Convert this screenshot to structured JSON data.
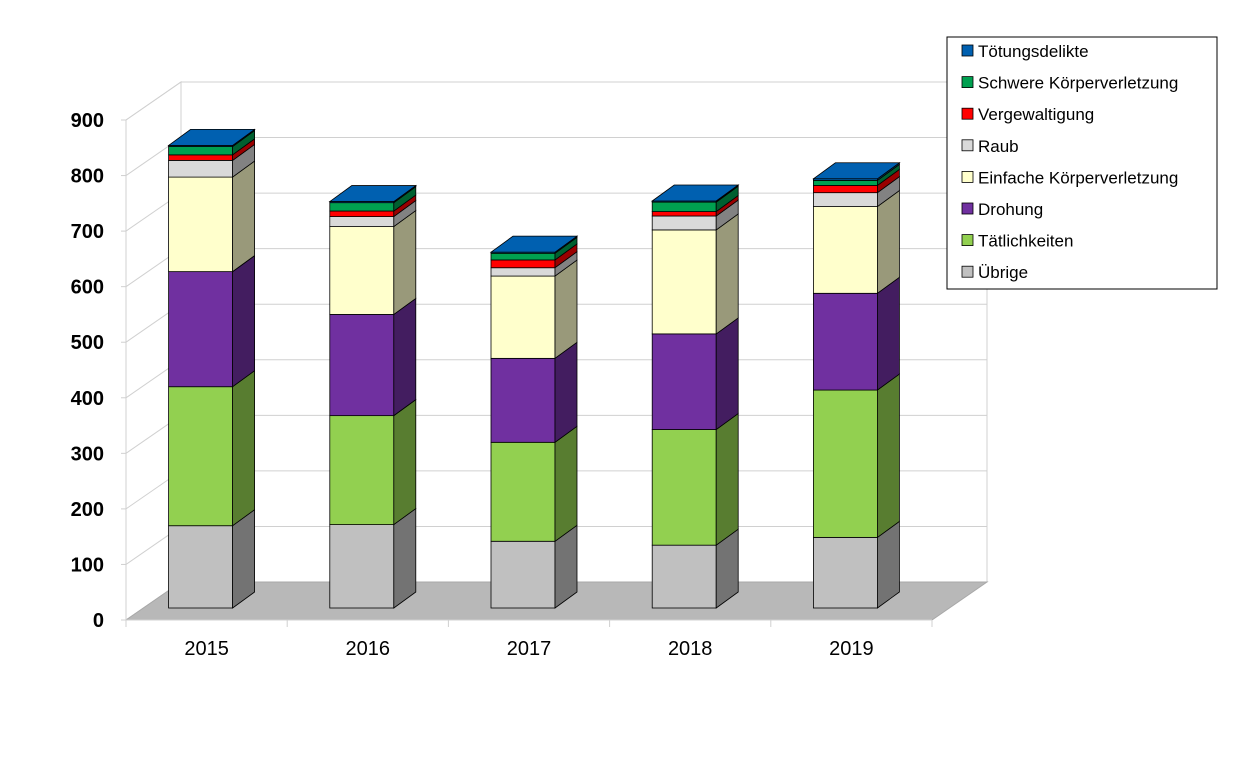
{
  "chart_data": {
    "type": "bar",
    "stacked": true,
    "three_d": true,
    "title": "",
    "xlabel": "",
    "ylabel": "",
    "ylim": [
      0,
      900
    ],
    "ytick_step": 100,
    "grid": true,
    "legend_position": "top-right",
    "categories": [
      "2015",
      "2016",
      "2017",
      "2018",
      "2019"
    ],
    "series": [
      {
        "name": "Übrige",
        "color": "#c0c0c0",
        "values": [
          148,
          150,
          120,
          113,
          127
        ]
      },
      {
        "name": "Tätlichkeiten",
        "color": "#92d050",
        "values": [
          250,
          196,
          178,
          208,
          265
        ]
      },
      {
        "name": "Drohung",
        "color": "#7030a0",
        "values": [
          207,
          182,
          151,
          172,
          174
        ]
      },
      {
        "name": "Einfache Körperverletzung",
        "color": "#ffffcc",
        "values": [
          170,
          158,
          148,
          187,
          156
        ]
      },
      {
        "name": "Raub",
        "color": "#d9d9d9",
        "values": [
          30,
          18,
          15,
          25,
          25
        ]
      },
      {
        "name": "Vergewaltigung",
        "color": "#ff0000",
        "values": [
          10,
          10,
          14,
          8,
          13
        ]
      },
      {
        "name": "Schwere Körperverletzung",
        "color": "#00a050",
        "values": [
          15,
          15,
          12,
          17,
          9
        ]
      },
      {
        "name": "Tötungsdelikte",
        "color": "#0060b0",
        "values": [
          2,
          2,
          2,
          2,
          3
        ]
      }
    ]
  }
}
